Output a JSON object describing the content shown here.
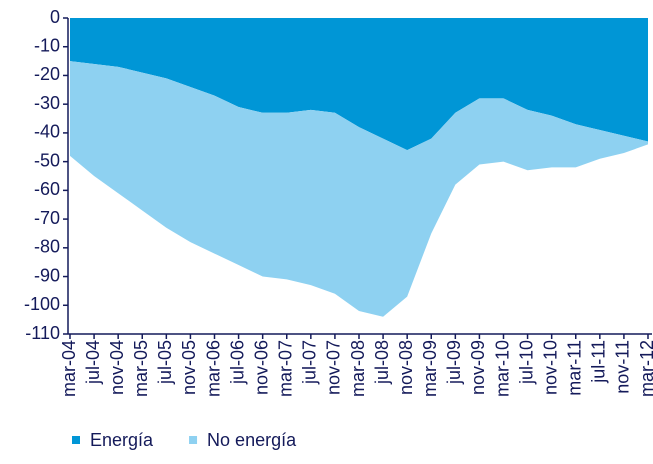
{
  "chart_data": {
    "type": "area",
    "stacked": true,
    "categories": [
      "mar-04",
      "jul-04",
      "nov-04",
      "mar-05",
      "jul-05",
      "nov-05",
      "mar-06",
      "jul-06",
      "nov-06",
      "mar-07",
      "jul-07",
      "nov-07",
      "mar-08",
      "jul-08",
      "nov-08",
      "mar-09",
      "jul-09",
      "nov-09",
      "mar-10",
      "jul-10",
      "nov-10",
      "mar-11",
      "jul-11",
      "nov-11",
      "mar-12"
    ],
    "series": [
      {
        "name": "Energía",
        "color": "#0096d6",
        "values": [
          -15,
          -16,
          -17,
          -19,
          -21,
          -24,
          -27,
          -31,
          -33,
          -33,
          -32,
          -33,
          -38,
          -42,
          -46,
          -42,
          -33,
          -28,
          -28,
          -32,
          -34,
          -37,
          -39,
          -41,
          -43
        ]
      },
      {
        "name": "No energía",
        "color": "#8ed1f1",
        "values": [
          -33,
          -39,
          -44,
          -48,
          -52,
          -54,
          -55,
          -55,
          -57,
          -58,
          -61,
          -63,
          -64,
          -62,
          -51,
          -33,
          -25,
          -23,
          -22,
          -21,
          -18,
          -15,
          -10,
          -6,
          -1
        ]
      }
    ],
    "ylim": [
      -110,
      0
    ],
    "yticks": [
      0,
      -10,
      -20,
      -30,
      -40,
      -50,
      -60,
      -70,
      -80,
      -90,
      -100,
      -110
    ],
    "legend": "bottom-left"
  }
}
